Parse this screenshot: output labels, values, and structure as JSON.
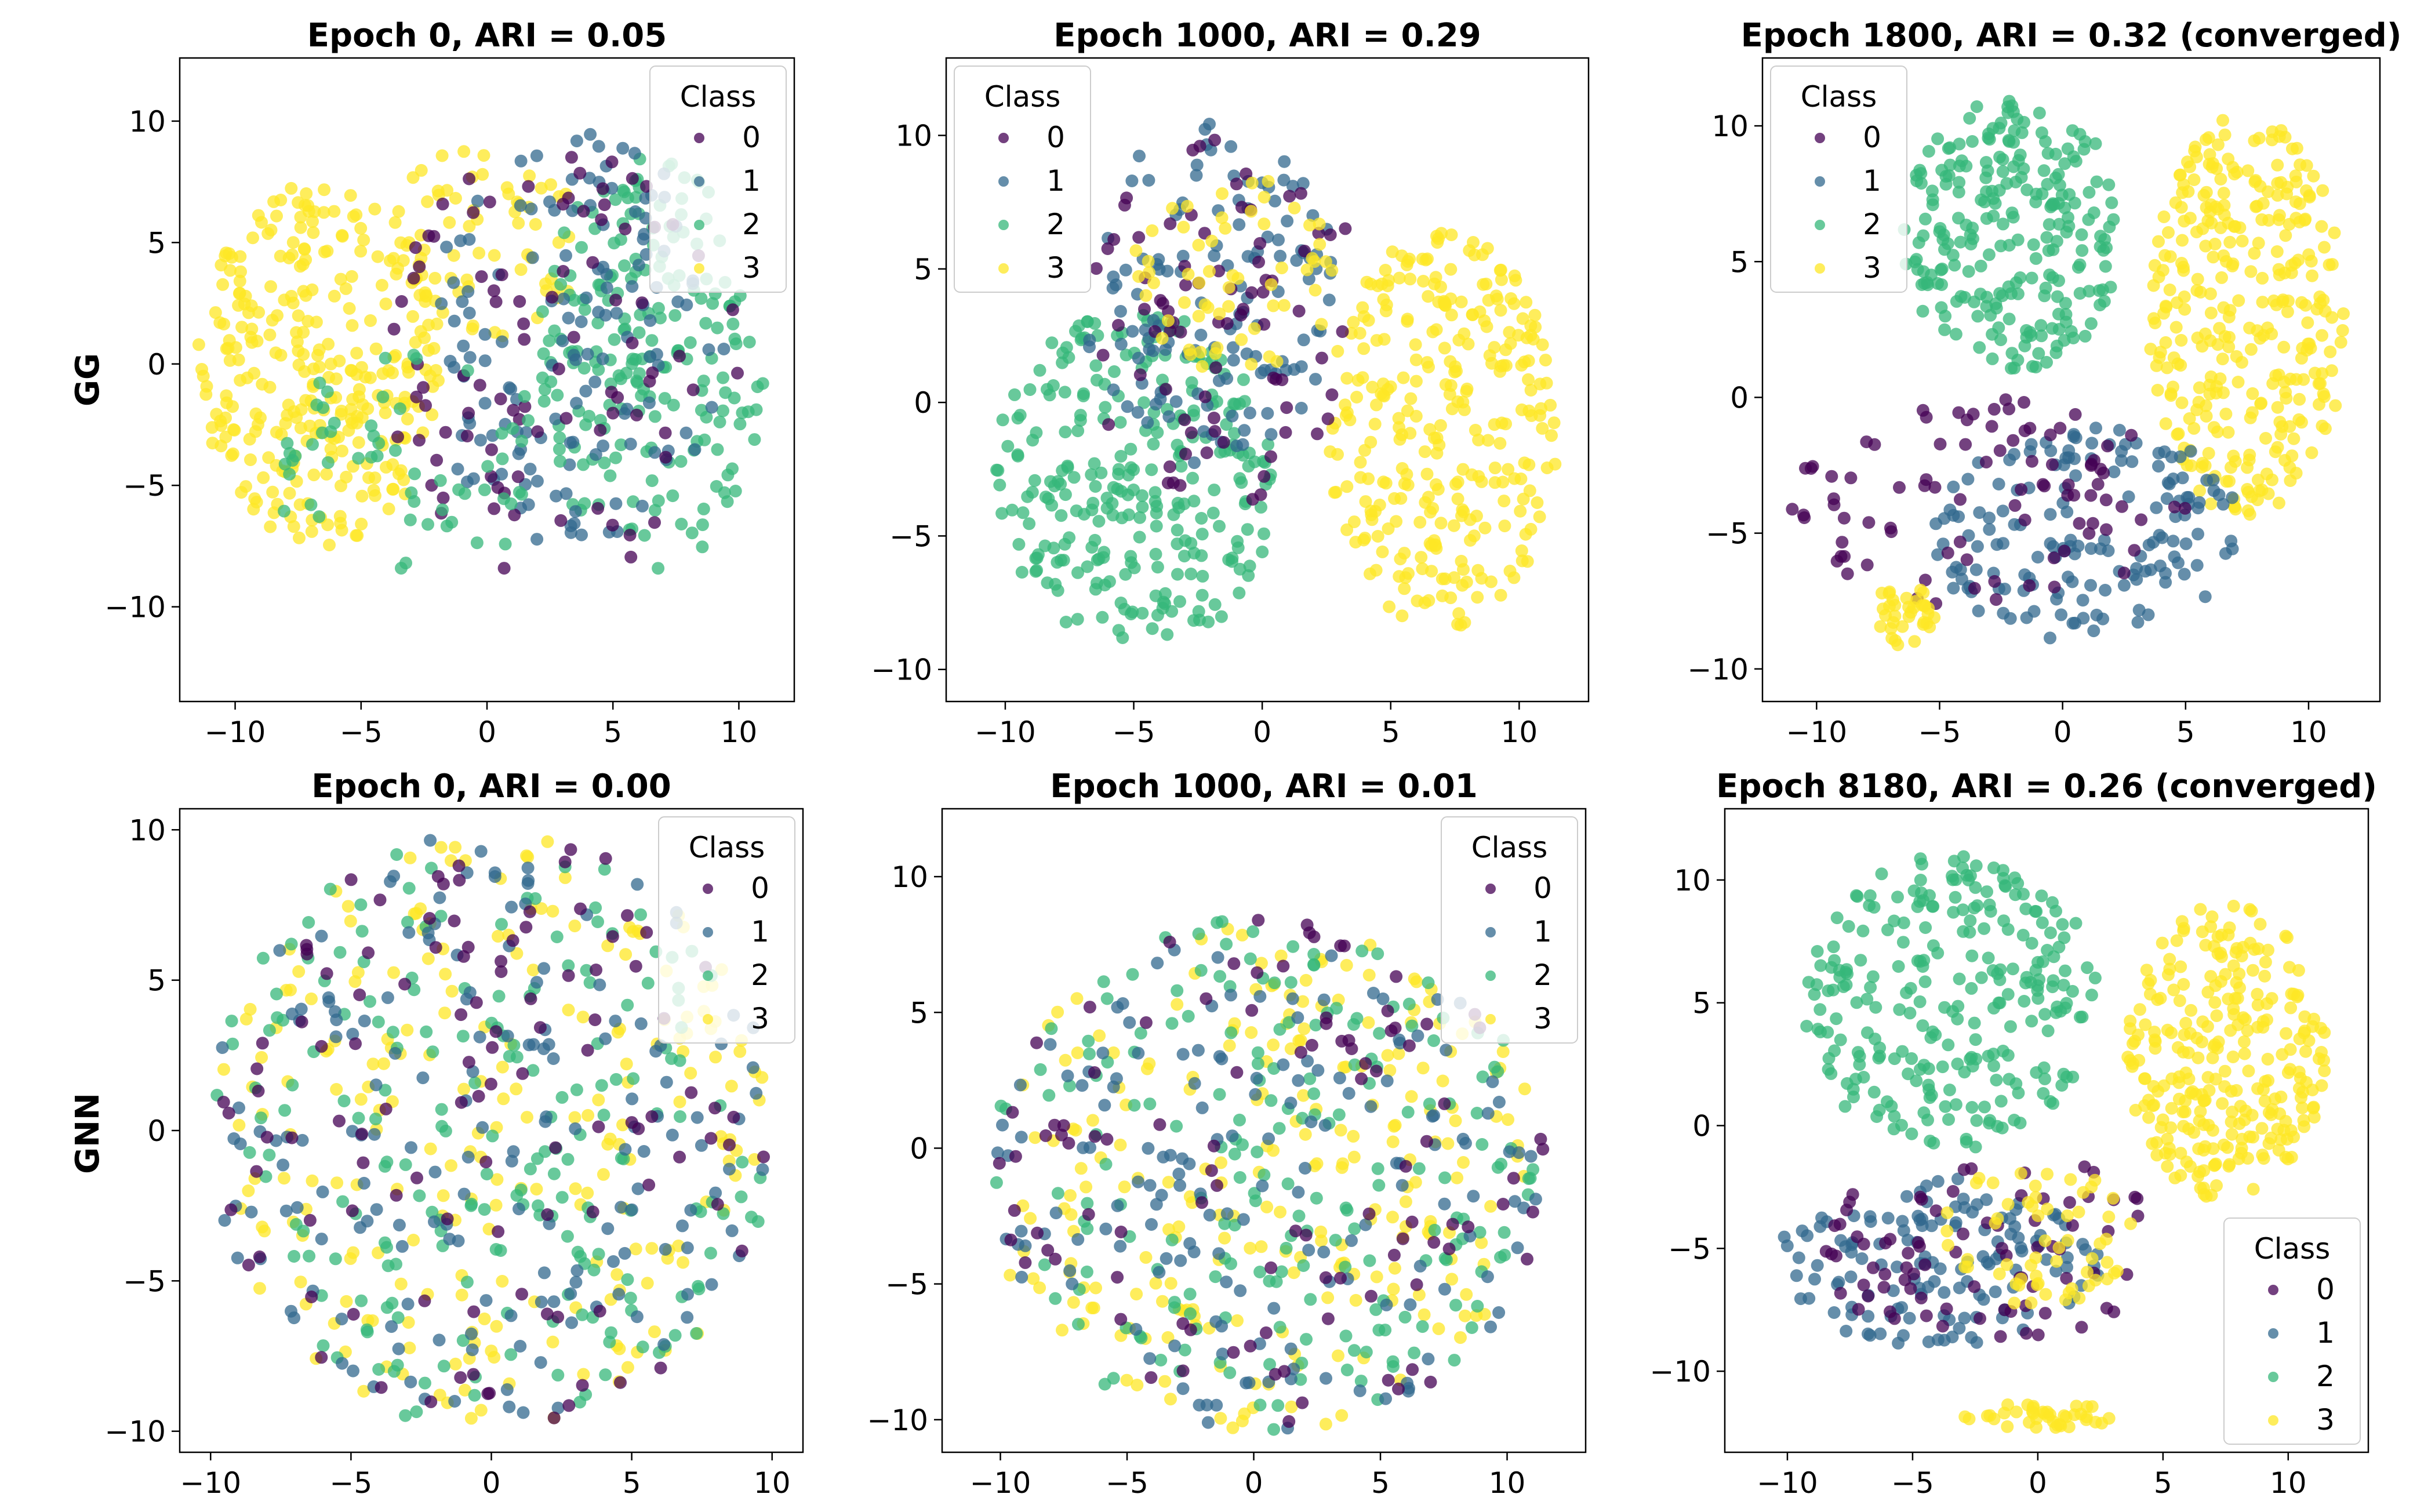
{
  "figure": {
    "row_labels": [
      "GG",
      "GNN"
    ],
    "class_colors": [
      "#440154",
      "#31688e",
      "#35b779",
      "#fde725"
    ]
  },
  "chart_data": [
    {
      "type": "scatter",
      "row": "GG",
      "title": "Epoch 0,  ARI = 0.05",
      "xlim": [
        -12.2,
        12.2
      ],
      "ylim": [
        -13.9,
        12.6
      ],
      "xticks": [
        -10,
        -5,
        0,
        5,
        10
      ],
      "yticks": [
        -10,
        -5,
        0,
        5,
        10
      ],
      "xtick_labels": [
        "−10",
        "−5",
        "0",
        "5",
        "10"
      ],
      "ytick_labels": [
        "−10",
        "−5",
        "0",
        "5",
        "10"
      ],
      "legend": {
        "title": "Class",
        "entries": [
          "0",
          "1",
          "2",
          "3"
        ],
        "loc": "upper right"
      },
      "clusters": [
        {
          "class": 3,
          "cx": -6.5,
          "cy": 0.0,
          "rx": 5.0,
          "ry": 7.5,
          "n": 300
        },
        {
          "class": 3,
          "cx": 0.0,
          "cy": 5.0,
          "rx": 4.0,
          "ry": 4.0,
          "n": 70
        },
        {
          "class": 2,
          "cx": 6.5,
          "cy": 0.0,
          "rx": 4.5,
          "ry": 8.5,
          "n": 200
        },
        {
          "class": 1,
          "cx": 3.5,
          "cy": 1.0,
          "rx": 6.0,
          "ry": 8.5,
          "n": 140
        },
        {
          "class": 0,
          "cx": 3.0,
          "cy": 0.0,
          "rx": 7.0,
          "ry": 9.0,
          "n": 90
        },
        {
          "class": 2,
          "cx": -3.0,
          "cy": -4.0,
          "rx": 6.0,
          "ry": 4.5,
          "n": 60
        }
      ]
    },
    {
      "type": "scatter",
      "row": "GG",
      "title": "Epoch 1000,  ARI = 0.29",
      "xlim": [
        -12.3,
        12.7
      ],
      "ylim": [
        -11.2,
        12.9
      ],
      "xticks": [
        -10,
        -5,
        0,
        5,
        10
      ],
      "yticks": [
        -10,
        -5,
        0,
        5,
        10
      ],
      "xtick_labels": [
        "−10",
        "−5",
        "0",
        "5",
        "10"
      ],
      "ytick_labels": [
        "−10",
        "−5",
        "0",
        "5",
        "10"
      ],
      "legend": {
        "title": "Class",
        "entries": [
          "0",
          "1",
          "2",
          "3"
        ],
        "loc": "upper left"
      },
      "clusters": [
        {
          "class": 3,
          "cx": 7.0,
          "cy": -1.0,
          "rx": 4.5,
          "ry": 7.5,
          "n": 300
        },
        {
          "class": 2,
          "cx": -5.0,
          "cy": -3.0,
          "rx": 5.5,
          "ry": 6.5,
          "n": 280
        },
        {
          "class": 1,
          "cx": -2.0,
          "cy": 4.0,
          "rx": 5.0,
          "ry": 6.5,
          "n": 130
        },
        {
          "class": 0,
          "cx": -1.5,
          "cy": 3.0,
          "rx": 5.5,
          "ry": 7.0,
          "n": 80
        },
        {
          "class": 3,
          "cx": -1.0,
          "cy": 5.0,
          "rx": 4.0,
          "ry": 4.0,
          "n": 60
        }
      ]
    },
    {
      "type": "scatter",
      "row": "GG",
      "title": "Epoch 1800,  ARI = 0.32 (converged)",
      "xlim": [
        -12.2,
        12.9
      ],
      "ylim": [
        -11.2,
        12.5
      ],
      "xticks": [
        -10,
        -5,
        0,
        5,
        10
      ],
      "yticks": [
        -10,
        -5,
        0,
        5,
        10
      ],
      "xtick_labels": [
        "−10",
        "−5",
        "0",
        "5",
        "10"
      ],
      "ytick_labels": [
        "−10",
        "−5",
        "0",
        "5",
        "10"
      ],
      "legend": {
        "title": "Class",
        "entries": [
          "0",
          "1",
          "2",
          "3"
        ],
        "loc": "upper left"
      },
      "clusters": [
        {
          "class": 3,
          "cx": 7.5,
          "cy": 3.0,
          "rx": 4.0,
          "ry": 7.5,
          "n": 320
        },
        {
          "class": 2,
          "cx": -2.0,
          "cy": 6.0,
          "rx": 4.5,
          "ry": 5.0,
          "n": 240
        },
        {
          "class": 1,
          "cx": 1.0,
          "cy": -5.0,
          "rx": 6.5,
          "ry": 4.0,
          "n": 160
        },
        {
          "class": 0,
          "cx": -3.0,
          "cy": -4.0,
          "rx": 8.0,
          "ry": 4.0,
          "n": 90
        },
        {
          "class": 3,
          "cx": -6.5,
          "cy": -8.0,
          "rx": 1.4,
          "ry": 1.2,
          "n": 35
        }
      ]
    },
    {
      "type": "scatter",
      "row": "GNN",
      "title": "Epoch 0,  ARI = 0.00",
      "xlim": [
        -11.1,
        11.1
      ],
      "ylim": [
        -10.7,
        10.7
      ],
      "xticks": [
        -10,
        -5,
        0,
        5,
        10
      ],
      "yticks": [
        -10,
        -5,
        0,
        5,
        10
      ],
      "xtick_labels": [
        "−10",
        "−5",
        "0",
        "5",
        "10"
      ],
      "ytick_labels": [
        "−10",
        "−5",
        "0",
        "5",
        "10"
      ],
      "legend": {
        "title": "Class",
        "entries": [
          "0",
          "1",
          "2",
          "3"
        ],
        "loc": "upper right"
      },
      "clusters": [
        {
          "class": 3,
          "cx": 0.0,
          "cy": 0.0,
          "rx": 10.0,
          "ry": 10.0,
          "n": 220
        },
        {
          "class": 2,
          "cx": 0.0,
          "cy": 0.0,
          "rx": 10.0,
          "ry": 10.0,
          "n": 200
        },
        {
          "class": 1,
          "cx": 0.0,
          "cy": 0.0,
          "rx": 10.0,
          "ry": 10.0,
          "n": 170
        },
        {
          "class": 0,
          "cx": 0.0,
          "cy": 0.0,
          "rx": 10.0,
          "ry": 10.0,
          "n": 110
        }
      ]
    },
    {
      "type": "scatter",
      "row": "GNN",
      "title": "Epoch 1000,  ARI = 0.01",
      "xlim": [
        -12.3,
        13.1
      ],
      "ylim": [
        -11.2,
        12.5
      ],
      "xticks": [
        -10,
        -5,
        0,
        5,
        10
      ],
      "yticks": [
        -10,
        -5,
        0,
        5,
        10
      ],
      "xtick_labels": [
        "−10",
        "−5",
        "0",
        "5",
        "10"
      ],
      "ytick_labels": [
        "−10",
        "−5",
        "0",
        "5",
        "10"
      ],
      "legend": {
        "title": "Class",
        "entries": [
          "0",
          "1",
          "2",
          "3"
        ],
        "loc": "upper right"
      },
      "clusters": [
        {
          "class": 3,
          "cx": 0.5,
          "cy": -1.0,
          "rx": 11.0,
          "ry": 9.5,
          "n": 230
        },
        {
          "class": 2,
          "cx": 0.5,
          "cy": -1.0,
          "rx": 11.0,
          "ry": 9.5,
          "n": 200
        },
        {
          "class": 1,
          "cx": 0.5,
          "cy": -1.0,
          "rx": 11.0,
          "ry": 9.5,
          "n": 160
        },
        {
          "class": 0,
          "cx": 0.5,
          "cy": -1.0,
          "rx": 11.0,
          "ry": 9.5,
          "n": 100
        }
      ]
    },
    {
      "type": "scatter",
      "row": "GNN",
      "title": "Epoch 8180,  ARI = 0.26 (converged)",
      "xlim": [
        -12.5,
        13.2
      ],
      "ylim": [
        -13.3,
        12.9
      ],
      "xticks": [
        -10,
        -5,
        0,
        5,
        10
      ],
      "yticks": [
        -10,
        -5,
        0,
        5,
        10
      ],
      "xtick_labels": [
        "−10",
        "−5",
        "0",
        "5",
        "10"
      ],
      "ytick_labels": [
        "−10",
        "−5",
        "0",
        "5",
        "10"
      ],
      "legend": {
        "title": "Class",
        "entries": [
          "0",
          "1",
          "2",
          "3"
        ],
        "loc": "lower right"
      },
      "clusters": [
        {
          "class": 3,
          "cx": 7.5,
          "cy": 3.0,
          "rx": 4.0,
          "ry": 6.0,
          "n": 280
        },
        {
          "class": 2,
          "cx": -3.5,
          "cy": 5.0,
          "rx": 6.0,
          "ry": 6.0,
          "n": 260
        },
        {
          "class": 1,
          "cx": -4.0,
          "cy": -5.5,
          "rx": 6.5,
          "ry": 3.5,
          "n": 140
        },
        {
          "class": 0,
          "cx": -2.0,
          "cy": -5.0,
          "rx": 7.0,
          "ry": 4.0,
          "n": 80
        },
        {
          "class": 3,
          "cx": 0.0,
          "cy": -11.8,
          "rx": 3.5,
          "ry": 0.5,
          "n": 40
        },
        {
          "class": 3,
          "cx": 0.0,
          "cy": -4.5,
          "rx": 4.0,
          "ry": 3.0,
          "n": 60
        }
      ]
    }
  ]
}
